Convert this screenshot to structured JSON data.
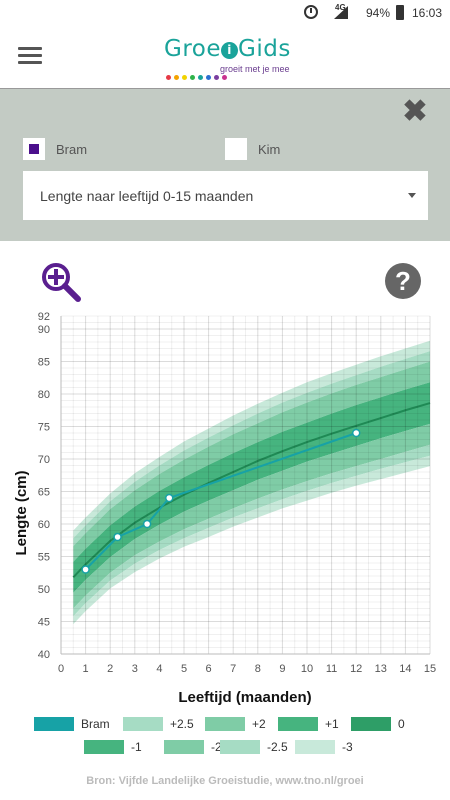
{
  "status": {
    "network": "4G",
    "battery": "94%",
    "time": "16:03"
  },
  "app": {
    "logo_text_a": "Groe",
    "logo_text_b": "Gids",
    "logo_i": "i",
    "tagline": "groeit met je mee",
    "dot_colors": [
      "#e63946",
      "#f4a300",
      "#f2d300",
      "#2fb34a",
      "#1aa39a",
      "#2b6fd1",
      "#7b3fa0",
      "#c9338f"
    ]
  },
  "panel": {
    "children": [
      {
        "name": "Bram",
        "checked": true,
        "color": "#4b0f8c"
      },
      {
        "name": "Kim",
        "checked": false
      }
    ],
    "chart_select": "Lengte naar leeftijd 0-15 maanden"
  },
  "chart_data": {
    "type": "line",
    "xlabel": "Leeftijd (maanden)",
    "ylabel": "Lengte (cm)",
    "xlim": [
      0,
      15
    ],
    "ylim": [
      40,
      92
    ],
    "x_ticks": [
      0,
      1,
      2,
      3,
      4,
      5,
      6,
      7,
      8,
      9,
      10,
      11,
      12,
      13,
      14,
      15
    ],
    "y_ticks": [
      40,
      45,
      50,
      55,
      60,
      65,
      70,
      75,
      80,
      85,
      90,
      92
    ],
    "grid": true,
    "band_x": [
      0.5,
      1,
      2,
      3,
      4,
      5,
      6,
      7,
      8,
      9,
      10,
      11,
      12,
      13,
      14,
      15
    ],
    "bands": {
      "plus3": [
        59.0,
        61.0,
        64.7,
        67.8,
        70.3,
        72.7,
        74.7,
        76.7,
        78.5,
        80.2,
        81.8,
        83.2,
        84.5,
        85.8,
        87.0,
        88.2
      ],
      "plus25": [
        57.8,
        59.8,
        63.5,
        66.5,
        69.0,
        71.3,
        73.3,
        75.2,
        77.0,
        78.7,
        80.2,
        81.6,
        82.9,
        84.2,
        85.4,
        86.6
      ],
      "plus2": [
        56.6,
        58.6,
        62.3,
        65.2,
        67.7,
        69.9,
        71.9,
        73.8,
        75.5,
        77.2,
        78.7,
        80.1,
        81.4,
        82.6,
        83.8,
        85.0
      ],
      "plus1": [
        54.2,
        56.2,
        59.8,
        62.7,
        65.1,
        67.2,
        69.1,
        70.9,
        72.6,
        74.2,
        75.6,
        77.0,
        78.3,
        79.5,
        80.7,
        81.8
      ],
      "zero": [
        51.8,
        53.8,
        57.4,
        60.2,
        62.5,
        64.5,
        66.3,
        68.0,
        69.7,
        71.2,
        72.6,
        73.9,
        75.1,
        76.3,
        77.5,
        78.6
      ],
      "min1": [
        49.4,
        51.4,
        54.9,
        57.7,
        59.9,
        61.9,
        63.6,
        65.2,
        66.8,
        68.2,
        69.6,
        70.8,
        72.0,
        73.2,
        74.3,
        75.4
      ],
      "min2": [
        47.0,
        49.0,
        52.5,
        55.2,
        57.3,
        59.2,
        60.8,
        62.4,
        63.9,
        65.3,
        66.6,
        67.8,
        68.9,
        70.0,
        71.1,
        72.2
      ],
      "min25": [
        45.8,
        47.8,
        51.3,
        53.9,
        56.0,
        57.8,
        59.4,
        61.0,
        62.4,
        63.8,
        65.1,
        66.3,
        67.4,
        68.5,
        69.5,
        70.5
      ],
      "min3": [
        44.6,
        46.6,
        50.1,
        52.6,
        54.7,
        56.5,
        58.0,
        59.6,
        61.0,
        62.4,
        63.6,
        64.8,
        65.9,
        66.9,
        67.9,
        68.9
      ]
    },
    "series": [
      {
        "name": "Bram",
        "color": "#17a2a6",
        "x": [
          1.0,
          2.3,
          3.5,
          4.4,
          12.0
        ],
        "y": [
          53.0,
          58.0,
          60.0,
          64.0,
          74.0
        ]
      }
    ],
    "legend": [
      {
        "label": "Bram",
        "color": "#17a2a6"
      },
      {
        "label": "+2.5",
        "color": "#a6dcc4"
      },
      {
        "label": "+2",
        "color": "#7fcca6"
      },
      {
        "label": "+1",
        "color": "#46b47f"
      },
      {
        "label": "0",
        "color": "#2e9e67"
      },
      {
        "label": "-1",
        "color": "#46b47f"
      },
      {
        "label": "-2",
        "color": "#7fcca6"
      },
      {
        "label": "-2.5",
        "color": "#a6dcc4"
      },
      {
        "label": "-3",
        "color": "#c8e9da"
      }
    ]
  },
  "footer": "Bron: Vijfde Landelijke Groeistudie, www.tno.nl/groei"
}
